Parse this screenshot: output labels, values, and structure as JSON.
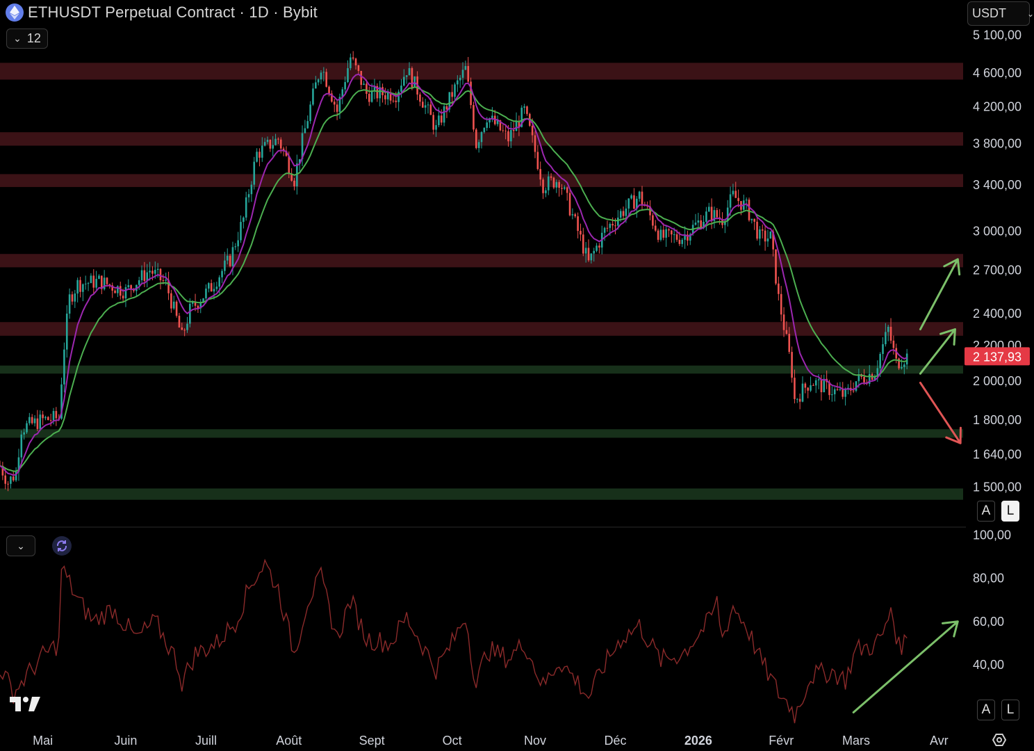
{
  "header": {
    "title": "ETHUSDT Perpetual Contract · 1D · Bybit",
    "icon": "ethereum-icon",
    "currency": "USDT",
    "indicator_count": "12"
  },
  "scale_buttons": {
    "main": {
      "auto": "A",
      "log": "L",
      "log_active": true
    },
    "sub": {
      "auto": "A",
      "log": "L"
    }
  },
  "colors": {
    "background": "#000000",
    "up": "#26a69a",
    "down": "#ef5350",
    "resistance_zone": "#3b1216",
    "support_zone": "#17301a",
    "ema_fast": "#9c27b0",
    "ema_slow": "#4caf50",
    "rsi_line": "#8b2a2a",
    "price_label": "#e53945",
    "arrow_up": "#7cc06a",
    "arrow_down": "#e05555"
  },
  "chart_data": [
    {
      "type": "candlestick",
      "title": "ETHUSDT Perpetual Contract · 1D · Bybit",
      "scale": "log",
      "ylim": [
        1380,
        5200
      ],
      "y_ticks": [
        "5 100,00",
        "4 600,00",
        "4 200,00",
        "3 800,00",
        "3 400,00",
        "3 000,00",
        "2 700,00",
        "2 400,00",
        "2 200,00",
        "2 000,00",
        "1 800,00",
        "1 640,00",
        "1 500,00"
      ],
      "y_tick_values": [
        5100,
        4600,
        4200,
        3800,
        3400,
        3000,
        2700,
        2400,
        2200,
        2000,
        1800,
        1640,
        1500
      ],
      "last_price": 2137.93,
      "last_price_label": "2 137,93",
      "x_ticks": [
        "Mai",
        "Juin",
        "Juill",
        "Août",
        "Sept",
        "Oct",
        "Nov",
        "Déc",
        "2026",
        "Févr",
        "Mars",
        "Avr"
      ],
      "x_range": [
        "2025-04-15",
        "2026-04-10"
      ],
      "price_path": [
        [
          "2025-04-15",
          1590
        ],
        [
          "2025-04-18",
          1520
        ],
        [
          "2025-04-21",
          1560
        ],
        [
          "2025-04-23",
          1760
        ],
        [
          "2025-05-01",
          1800
        ],
        [
          "2025-05-07",
          1810
        ],
        [
          "2025-05-09",
          2200
        ],
        [
          "2025-05-11",
          2500
        ],
        [
          "2025-05-14",
          2600
        ],
        [
          "2025-05-22",
          2620
        ],
        [
          "2025-06-01",
          2550
        ],
        [
          "2025-06-10",
          2700
        ],
        [
          "2025-06-16",
          2600
        ],
        [
          "2025-06-22",
          2250
        ],
        [
          "2025-06-25",
          2420
        ],
        [
          "2025-07-03",
          2580
        ],
        [
          "2025-07-10",
          2780
        ],
        [
          "2025-07-15",
          3100
        ],
        [
          "2025-07-20",
          3700
        ],
        [
          "2025-07-28",
          3850
        ],
        [
          "2025-08-03",
          3450
        ],
        [
          "2025-08-09",
          4200
        ],
        [
          "2025-08-13",
          4700
        ],
        [
          "2025-08-19",
          4150
        ],
        [
          "2025-08-24",
          4800
        ],
        [
          "2025-08-30",
          4350
        ],
        [
          "2025-09-10",
          4350
        ],
        [
          "2025-09-14",
          4650
        ],
        [
          "2025-09-25",
          3950
        ],
        [
          "2025-10-01",
          4350
        ],
        [
          "2025-10-06",
          4650
        ],
        [
          "2025-10-10",
          3800
        ],
        [
          "2025-10-14",
          4100
        ],
        [
          "2025-10-22",
          3850
        ],
        [
          "2025-10-28",
          4150
        ],
        [
          "2025-11-04",
          3400
        ],
        [
          "2025-11-10",
          3450
        ],
        [
          "2025-11-17",
          3000
        ],
        [
          "2025-11-21",
          2750
        ],
        [
          "2025-11-27",
          3000
        ],
        [
          "2025-12-03",
          3150
        ],
        [
          "2025-12-10",
          3300
        ],
        [
          "2025-12-18",
          2950
        ],
        [
          "2025-12-26",
          2950
        ],
        [
          "2026-01-05",
          3150
        ],
        [
          "2026-01-10",
          3100
        ],
        [
          "2026-01-14",
          3300
        ],
        [
          "2026-01-19",
          3200
        ],
        [
          "2026-01-24",
          2950
        ],
        [
          "2026-01-28",
          2950
        ],
        [
          "2026-01-31",
          2500
        ],
        [
          "2026-02-05",
          2050
        ],
        [
          "2026-02-06",
          1900
        ],
        [
          "2026-02-12",
          2000
        ],
        [
          "2026-02-20",
          1950
        ],
        [
          "2026-02-25",
          1920
        ],
        [
          "2026-03-01",
          2000
        ],
        [
          "2026-03-08",
          2050
        ],
        [
          "2026-03-13",
          2300
        ],
        [
          "2026-03-16",
          2100
        ],
        [
          "2026-03-20",
          2138
        ]
      ],
      "zones": [
        {
          "kind": "resistance",
          "low": 4520,
          "high": 4730
        },
        {
          "kind": "resistance",
          "low": 3780,
          "high": 3920
        },
        {
          "kind": "resistance",
          "low": 3380,
          "high": 3500
        },
        {
          "kind": "resistance",
          "low": 2720,
          "high": 2820
        },
        {
          "kind": "resistance",
          "low": 2260,
          "high": 2345
        },
        {
          "kind": "support",
          "low": 2040,
          "high": 2085
        },
        {
          "kind": "support",
          "low": 1715,
          "high": 1755
        },
        {
          "kind": "support",
          "low": 1450,
          "high": 1495
        }
      ],
      "moving_averages": [
        "ema_fast",
        "ema_slow"
      ],
      "annotations": [
        {
          "type": "arrow",
          "color": "arrow_up",
          "from": [
            "2026-03-25",
            2300
          ],
          "to": [
            "2026-04-08",
            2780
          ]
        },
        {
          "type": "arrow",
          "color": "arrow_up",
          "from": [
            "2026-03-25",
            2040
          ],
          "to": [
            "2026-04-07",
            2300
          ]
        },
        {
          "type": "arrow",
          "color": "arrow_down",
          "from": [
            "2026-03-25",
            1990
          ],
          "to": [
            "2026-04-09",
            1690
          ]
        }
      ]
    },
    {
      "type": "line",
      "indicator": "RSI",
      "ylim": [
        13,
        103
      ],
      "y_ticks": [
        "100,00",
        "80,00",
        "60,00",
        "40,00"
      ],
      "y_tick_values": [
        100,
        80,
        60,
        40
      ],
      "values_path": [
        [
          "2025-04-15",
          39
        ],
        [
          "2025-04-20",
          27
        ],
        [
          "2025-04-25",
          35
        ],
        [
          "2025-05-01",
          44
        ],
        [
          "2025-05-07",
          50
        ],
        [
          "2025-05-08",
          85
        ],
        [
          "2025-05-14",
          70
        ],
        [
          "2025-05-20",
          60
        ],
        [
          "2025-05-27",
          66
        ],
        [
          "2025-06-05",
          52
        ],
        [
          "2025-06-12",
          60
        ],
        [
          "2025-06-20",
          42
        ],
        [
          "2025-06-22",
          32
        ],
        [
          "2025-06-27",
          45
        ],
        [
          "2025-07-05",
          50
        ],
        [
          "2025-07-12",
          60
        ],
        [
          "2025-07-18",
          78
        ],
        [
          "2025-07-23",
          87
        ],
        [
          "2025-07-28",
          75
        ],
        [
          "2025-08-03",
          45
        ],
        [
          "2025-08-08",
          70
        ],
        [
          "2025-08-13",
          80
        ],
        [
          "2025-08-19",
          52
        ],
        [
          "2025-08-24",
          70
        ],
        [
          "2025-08-30",
          52
        ],
        [
          "2025-09-08",
          50
        ],
        [
          "2025-09-14",
          62
        ],
        [
          "2025-09-25",
          38
        ],
        [
          "2025-10-01",
          50
        ],
        [
          "2025-10-06",
          63
        ],
        [
          "2025-10-10",
          30
        ],
        [
          "2025-10-14",
          47
        ],
        [
          "2025-10-22",
          43
        ],
        [
          "2025-10-28",
          50
        ],
        [
          "2025-11-04",
          30
        ],
        [
          "2025-11-10",
          42
        ],
        [
          "2025-11-17",
          32
        ],
        [
          "2025-11-21",
          25
        ],
        [
          "2025-11-27",
          40
        ],
        [
          "2025-12-03",
          52
        ],
        [
          "2025-12-10",
          58
        ],
        [
          "2025-12-18",
          42
        ],
        [
          "2025-12-26",
          45
        ],
        [
          "2026-01-05",
          60
        ],
        [
          "2026-01-08",
          69
        ],
        [
          "2026-01-10",
          52
        ],
        [
          "2026-01-14",
          67
        ],
        [
          "2026-01-19",
          58
        ],
        [
          "2026-01-24",
          43
        ],
        [
          "2026-01-31",
          27
        ],
        [
          "2026-02-05",
          20
        ],
        [
          "2026-02-06",
          16
        ],
        [
          "2026-02-12",
          35
        ],
        [
          "2026-02-20",
          37
        ],
        [
          "2026-02-25",
          33
        ],
        [
          "2026-03-01",
          47
        ],
        [
          "2026-03-08",
          49
        ],
        [
          "2026-03-12",
          56
        ],
        [
          "2026-03-14",
          67
        ],
        [
          "2026-03-17",
          48
        ],
        [
          "2026-03-20",
          52
        ]
      ],
      "annotations": [
        {
          "type": "arrow",
          "color": "arrow_up",
          "from": [
            "2026-02-28",
            18
          ],
          "to": [
            "2026-04-08",
            60
          ]
        }
      ]
    }
  ]
}
